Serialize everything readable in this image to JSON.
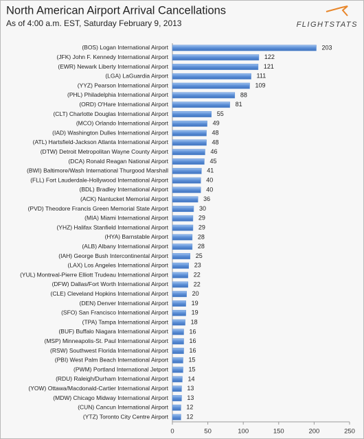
{
  "logo": "FLIGHTSTATS",
  "chart_data": {
    "type": "bar",
    "orientation": "horizontal",
    "title": "North American Airport Arrival Cancellations",
    "subtitle": "As of 4:00 a.m. EST, Saturday February 9, 2013",
    "categories": [
      "(BOS) Logan International Airport",
      "(JFK) John F. Kennedy International Airport",
      "(EWR) Newark Liberty International Airport",
      "(LGA) LaGuardia Airport",
      "(YYZ) Pearson International Airport",
      "(PHL) Philadelphia International Airport",
      "(ORD) O'Hare International Airport",
      "(CLT) Charlotte Douglas International Airport",
      "(MCO) Orlando International Airport",
      "(IAD) Washington Dulles International Airport",
      "(ATL) Hartsfield-Jackson Atlanta International Airport",
      "(DTW) Detroit Metropolitan Wayne County Airport",
      "(DCA) Ronald Reagan National Airport",
      "(BWI) Baltimore/Wash International Thurgood Marshall",
      "(FLL) Fort Lauderdale-Hollywood International Airport",
      "(BDL) Bradley International Airport",
      "(ACK) Nantucket Memorial Airport",
      "(PVD) Theodore Francis Green Memorial State Airport",
      "(MIA) Miami International Airport",
      "(YHZ) Halifax Stanfield International Airport",
      "(HYA) Barnstable Airport",
      "(ALB) Albany International Airport",
      "(IAH) George Bush Intercontinental Airport",
      "(LAX) Los Angeles International Airport",
      "(YUL) Montreal-Pierre Elliott Trudeau International Airport",
      "(DFW) Dallas/Fort Worth International Airport",
      "(CLE) Cleveland Hopkins International Airport",
      "(DEN) Denver International Airport",
      "(SFO) San Francisco International Airport",
      "(TPA) Tampa International Airport",
      "(BUF) Buffalo Niagara International Airport",
      "(MSP) Minneapolis-St. Paul International Airport",
      "(RSW) Southwest Florida International Airport",
      "(PBI) West Palm Beach International Airport",
      "(PWM) Portland International Jetport",
      "(RDU) Raleigh/Durham International Airport",
      "(YOW) Ottawa/Macdonald-Cartier International Airport",
      "(MDW) Chicago Midway International Airport",
      "(CUN) Cancun International Airport",
      "(YTZ) Toronto City Centre Airport"
    ],
    "values": [
      203,
      122,
      121,
      111,
      109,
      88,
      81,
      55,
      49,
      48,
      48,
      46,
      45,
      41,
      40,
      40,
      36,
      30,
      29,
      29,
      28,
      28,
      25,
      23,
      22,
      22,
      20,
      19,
      19,
      18,
      16,
      16,
      16,
      15,
      15,
      14,
      13,
      13,
      12,
      12
    ],
    "color": "#5b8ed6",
    "xlim": [
      0,
      250
    ],
    "xticks": [
      0,
      50,
      100,
      150,
      200,
      250
    ],
    "grid": false
  }
}
